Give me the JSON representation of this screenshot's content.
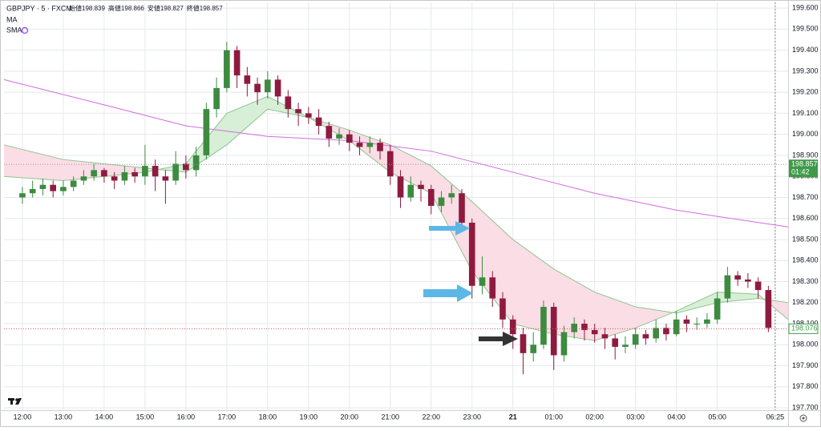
{
  "chart_data": {
    "type": "candlestick",
    "title": "GBPJPY · 5 · FXCM",
    "legend_ohlc": [
      {
        "label": "始値",
        "value": 198.839
      },
      {
        "label": "高値",
        "value": 198.866
      },
      {
        "label": "安値",
        "value": 198.827
      },
      {
        "label": "終値",
        "value": 198.857
      }
    ],
    "up_color": "#3d8b40",
    "down_color": "#8e1b3f",
    "x": [
      0,
      15,
      30,
      45,
      60,
      75,
      90,
      105,
      120,
      135,
      150,
      165,
      180,
      195,
      210,
      225,
      240,
      255,
      270,
      285,
      300,
      315,
      330,
      345,
      360,
      375,
      390,
      405,
      420,
      435,
      450,
      465,
      480,
      495,
      510,
      525,
      540,
      555,
      570,
      585,
      600,
      615,
      630,
      645,
      660,
      675,
      690,
      705,
      720,
      735,
      750,
      765,
      780,
      795,
      810,
      825,
      840,
      855,
      870,
      885,
      900,
      915,
      930,
      945,
      960,
      975,
      990,
      1005,
      1020,
      1035,
      1050,
      1065,
      1080,
      1095
    ],
    "candles": [
      [
        198.7,
        198.75,
        198.67,
        198.72
      ],
      [
        198.72,
        198.78,
        198.7,
        198.74
      ],
      [
        198.74,
        198.79,
        198.71,
        198.76
      ],
      [
        198.76,
        198.78,
        198.7,
        198.73
      ],
      [
        198.73,
        198.78,
        198.71,
        198.75
      ],
      [
        198.75,
        198.8,
        198.73,
        198.78
      ],
      [
        198.78,
        198.83,
        198.76,
        198.8
      ],
      [
        198.8,
        198.86,
        198.78,
        198.83
      ],
      [
        198.83,
        198.84,
        198.77,
        198.8
      ],
      [
        198.8,
        198.82,
        198.74,
        198.78
      ],
      [
        198.78,
        198.85,
        198.76,
        198.82
      ],
      [
        198.82,
        198.84,
        198.77,
        198.8
      ],
      [
        198.8,
        198.95,
        198.76,
        198.85
      ],
      [
        198.85,
        198.88,
        198.73,
        198.8
      ],
      [
        198.8,
        198.83,
        198.67,
        198.78
      ],
      [
        198.78,
        198.92,
        198.76,
        198.86
      ],
      [
        198.86,
        198.9,
        198.79,
        198.83
      ],
      [
        198.83,
        198.94,
        198.8,
        198.9
      ],
      [
        198.9,
        199.15,
        198.88,
        199.12
      ],
      [
        199.12,
        199.27,
        199.08,
        199.22
      ],
      [
        199.22,
        199.44,
        199.2,
        199.4
      ],
      [
        199.4,
        199.42,
        199.22,
        199.28
      ],
      [
        199.28,
        199.32,
        199.18,
        199.24
      ],
      [
        199.24,
        199.27,
        199.14,
        199.2
      ],
      [
        199.2,
        199.3,
        199.17,
        199.26
      ],
      [
        199.26,
        199.28,
        199.14,
        199.18
      ],
      [
        199.18,
        199.21,
        199.08,
        199.12
      ],
      [
        199.12,
        199.15,
        199.04,
        199.1
      ],
      [
        199.1,
        199.13,
        199.05,
        199.08
      ],
      [
        199.08,
        199.12,
        199.0,
        199.04
      ],
      [
        199.04,
        199.06,
        198.94,
        198.98
      ],
      [
        198.98,
        199.03,
        198.95,
        199.0
      ],
      [
        199.0,
        199.02,
        198.92,
        198.96
      ],
      [
        198.96,
        198.99,
        198.9,
        198.94
      ],
      [
        198.94,
        198.99,
        198.91,
        198.96
      ],
      [
        198.96,
        198.98,
        198.88,
        198.92
      ],
      [
        198.92,
        198.95,
        198.76,
        198.8
      ],
      [
        198.8,
        198.83,
        198.65,
        198.7
      ],
      [
        198.7,
        198.8,
        198.68,
        198.76
      ],
      [
        198.76,
        198.78,
        198.68,
        198.74
      ],
      [
        198.74,
        198.76,
        198.62,
        198.66
      ],
      [
        198.66,
        198.73,
        198.63,
        198.7
      ],
      [
        198.7,
        198.76,
        198.67,
        198.72
      ],
      [
        198.72,
        198.74,
        198.55,
        198.58
      ],
      [
        198.58,
        198.6,
        198.22,
        198.28
      ],
      [
        198.28,
        198.42,
        198.24,
        198.32
      ],
      [
        198.32,
        198.35,
        198.18,
        198.22
      ],
      [
        198.22,
        198.25,
        198.08,
        198.12
      ],
      [
        198.12,
        198.14,
        197.98,
        198.05
      ],
      [
        198.05,
        198.08,
        197.86,
        197.96
      ],
      [
        197.96,
        198.06,
        197.92,
        198.0
      ],
      [
        198.0,
        198.21,
        197.98,
        198.18
      ],
      [
        198.18,
        198.2,
        197.88,
        197.95
      ],
      [
        197.95,
        198.09,
        197.92,
        198.06
      ],
      [
        198.06,
        198.13,
        198.03,
        198.1
      ],
      [
        198.1,
        198.12,
        198.02,
        198.07
      ],
      [
        198.07,
        198.1,
        198.01,
        198.05
      ],
      [
        198.05,
        198.08,
        197.98,
        198.03
      ],
      [
        198.03,
        198.05,
        197.93,
        197.99
      ],
      [
        197.99,
        198.04,
        197.96,
        198.0
      ],
      [
        198.0,
        198.08,
        197.98,
        198.05
      ],
      [
        198.05,
        198.07,
        198.0,
        198.03
      ],
      [
        198.03,
        198.12,
        198.01,
        198.08
      ],
      [
        198.08,
        198.1,
        198.02,
        198.05
      ],
      [
        198.05,
        198.16,
        198.04,
        198.12
      ],
      [
        198.12,
        198.14,
        198.06,
        198.1
      ],
      [
        198.1,
        198.13,
        198.07,
        198.1
      ],
      [
        198.1,
        198.15,
        198.08,
        198.12
      ],
      [
        198.12,
        198.25,
        198.1,
        198.22
      ],
      [
        198.22,
        198.37,
        198.2,
        198.33
      ],
      [
        198.33,
        198.35,
        198.28,
        198.31
      ],
      [
        198.31,
        198.34,
        198.27,
        198.3
      ],
      [
        198.3,
        198.32,
        198.22,
        198.26
      ],
      [
        198.26,
        198.28,
        198.06,
        198.08
      ]
    ],
    "ma": {
      "name": "MA",
      "color": "#8cc68c",
      "up_fill": "#d7efd7",
      "down_fill": "#fbdde6",
      "x": [
        -27,
        60,
        180,
        240,
        300,
        360,
        420,
        480,
        540,
        600,
        660,
        720,
        780,
        840,
        900,
        960,
        1020,
        1080,
        1124
      ],
      "fast": [
        198.8,
        198.78,
        198.82,
        198.86,
        199.1,
        199.18,
        199.08,
        198.97,
        198.82,
        198.72,
        198.35,
        198.1,
        198.05,
        198.02,
        198.08,
        198.16,
        198.25,
        198.24,
        198.12
      ],
      "slow": [
        198.95,
        198.88,
        198.84,
        198.82,
        198.95,
        199.12,
        199.08,
        199.02,
        198.95,
        198.85,
        198.68,
        198.5,
        198.36,
        198.25,
        198.18,
        198.15,
        198.2,
        198.22,
        198.2
      ]
    },
    "sma": {
      "name": "SMA",
      "color": "#d36be0",
      "x": [
        -27,
        120,
        240,
        360,
        480,
        600,
        720,
        840,
        960,
        1020,
        1124
      ],
      "values": [
        199.26,
        199.14,
        199.04,
        198.99,
        198.97,
        198.92,
        198.82,
        198.72,
        198.64,
        198.61,
        198.56
      ]
    },
    "last_price": 198.857,
    "countdown": "01:42",
    "current_price": 198.076,
    "xlim": [
      -27,
      1124
    ],
    "ylim": [
      197.689,
      199.627
    ],
    "xticks": [
      {
        "value": 0,
        "label": "12:00"
      },
      {
        "value": 60,
        "label": "13:00"
      },
      {
        "value": 120,
        "label": "14:00"
      },
      {
        "value": 180,
        "label": "15:00"
      },
      {
        "value": 240,
        "label": "16:00"
      },
      {
        "value": 300,
        "label": "17:00"
      },
      {
        "value": 360,
        "label": "18:00"
      },
      {
        "value": 420,
        "label": "19:00"
      },
      {
        "value": 480,
        "label": "20:00"
      },
      {
        "value": 540,
        "label": "21:00"
      },
      {
        "value": 600,
        "label": "22:00"
      },
      {
        "value": 660,
        "label": "23:00"
      },
      {
        "value": 720,
        "label": "21",
        "bold": true
      },
      {
        "value": 780,
        "label": "01:00"
      },
      {
        "value": 840,
        "label": "02:00"
      },
      {
        "value": 900,
        "label": "03:00"
      },
      {
        "value": 960,
        "label": "04:00"
      },
      {
        "value": 1020,
        "label": "05:00"
      },
      {
        "value": 1105,
        "label": "06:25"
      }
    ],
    "yticks": [
      {
        "value": 197.7,
        "label": "197.700"
      },
      {
        "value": 197.8,
        "label": "197.800"
      },
      {
        "value": 197.9,
        "label": "197.900"
      },
      {
        "value": 198.0,
        "label": "198.000"
      },
      {
        "value": 198.1,
        "label": "198.100"
      },
      {
        "value": 198.2,
        "label": "198.200"
      },
      {
        "value": 198.3,
        "label": "198.300"
      },
      {
        "value": 198.4,
        "label": "198.400"
      },
      {
        "value": 198.5,
        "label": "198.500"
      },
      {
        "value": 198.6,
        "label": "198.600"
      },
      {
        "value": 198.7,
        "label": "198.700"
      },
      {
        "value": 198.8,
        "label": "198.800"
      },
      {
        "value": 198.9,
        "label": "198.900"
      },
      {
        "value": 199.0,
        "label": "199.000"
      },
      {
        "value": 199.1,
        "label": "199.100"
      },
      {
        "value": 199.2,
        "label": "199.200"
      },
      {
        "value": 199.3,
        "label": "199.300"
      },
      {
        "value": 199.4,
        "label": "199.400"
      },
      {
        "value": 199.5,
        "label": "199.500"
      },
      {
        "value": 199.6,
        "label": "199.600"
      }
    ],
    "grid": true
  }
}
